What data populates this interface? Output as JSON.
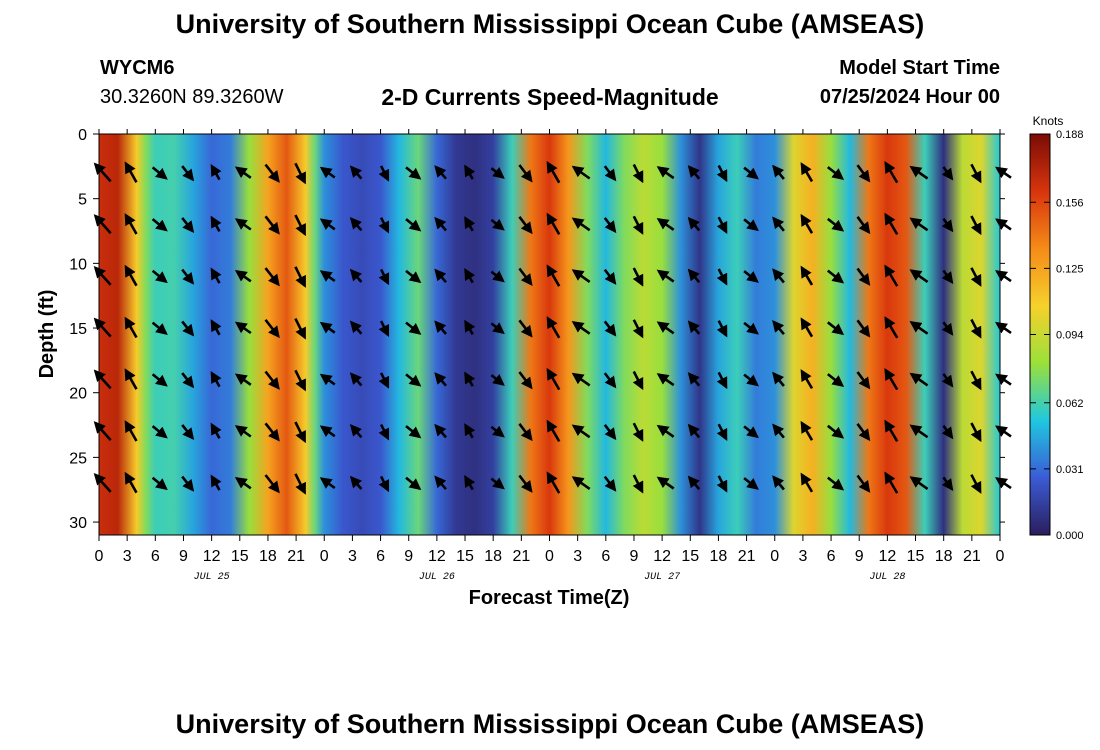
{
  "header": {
    "title": "University of Southern Mississippi Ocean Cube (AMSEAS)",
    "station_id": "WYCM6",
    "station_coords": "30.3260N  89.3260W",
    "subtitle": "2-D Currents Speed-Magnitude",
    "model_start_label": "Model Start Time",
    "model_start_value": "07/25/2024 Hour 00"
  },
  "footer": {
    "title": "University of Southern Mississippi Ocean Cube (AMSEAS)"
  },
  "chart_data": {
    "type": "heatmap",
    "title": "2-D Currents Speed-Magnitude",
    "xlabel": "Forecast Time(Z)",
    "ylabel": "Depth (ft)",
    "x_range_hours": [
      0,
      96
    ],
    "ylim": [
      0,
      31
    ],
    "y_inverted": true,
    "x_tick_hours": [
      0,
      3,
      6,
      9,
      12,
      15,
      18,
      21,
      24,
      27,
      30,
      33,
      36,
      39,
      42,
      45,
      48,
      51,
      54,
      57,
      60,
      63,
      66,
      69,
      72,
      75,
      78,
      81,
      84,
      87,
      90,
      93,
      96
    ],
    "x_tick_labels": [
      "0",
      "3",
      "6",
      "9",
      "12",
      "15",
      "18",
      "21",
      "0",
      "3",
      "6",
      "9",
      "12",
      "15",
      "18",
      "21",
      "0",
      "3",
      "6",
      "9",
      "12",
      "15",
      "18",
      "21",
      "0",
      "3",
      "6",
      "9",
      "12",
      "15",
      "18",
      "21",
      "0"
    ],
    "date_labels": [
      {
        "hour": 12,
        "label": "JUL 25"
      },
      {
        "hour": 36,
        "label": "JUL 26"
      },
      {
        "hour": 60,
        "label": "JUL 27"
      },
      {
        "hour": 84,
        "label": "JUL 28"
      }
    ],
    "y_ticks": [
      0,
      5,
      10,
      15,
      20,
      25,
      30
    ],
    "colorbar": {
      "units": "Knots",
      "min": 0.0,
      "max": 0.188,
      "tick_values": [
        0.0,
        0.031,
        0.062,
        0.094,
        0.125,
        0.156,
        0.188
      ],
      "tick_labels": [
        "0.000",
        "0.031",
        "0.062",
        "0.094",
        "0.125",
        "0.156",
        "0.188"
      ],
      "colors": [
        "#2a1e5c",
        "#3b5bd6",
        "#1fc8e0",
        "#9be03a",
        "#f6d12b",
        "#f58b18",
        "#d8340d",
        "#7a0c05"
      ]
    },
    "speed_profile_hours": [
      0,
      2,
      4,
      5,
      6,
      8,
      10,
      12,
      14,
      16,
      18,
      20,
      22,
      23,
      24,
      26,
      28,
      30,
      32,
      34,
      36,
      38,
      40,
      42,
      44,
      46,
      48,
      50,
      52,
      54,
      56,
      58,
      60,
      62,
      64,
      66,
      68,
      70,
      72,
      74,
      76,
      78,
      80,
      82,
      84,
      86,
      88,
      90,
      92,
      94,
      96
    ],
    "speed_profile_knots": [
      0.165,
      0.17,
      0.11,
      0.075,
      0.06,
      0.062,
      0.045,
      0.03,
      0.035,
      0.08,
      0.125,
      0.15,
      0.11,
      0.07,
      0.04,
      0.025,
      0.02,
      0.025,
      0.05,
      0.07,
      0.03,
      0.012,
      0.008,
      0.015,
      0.06,
      0.14,
      0.16,
      0.13,
      0.075,
      0.05,
      0.075,
      0.09,
      0.08,
      0.04,
      0.01,
      0.045,
      0.06,
      0.035,
      0.04,
      0.1,
      0.12,
      0.08,
      0.05,
      0.14,
      0.16,
      0.15,
      0.06,
      0.008,
      0.09,
      0.1,
      0.055
    ]
  }
}
